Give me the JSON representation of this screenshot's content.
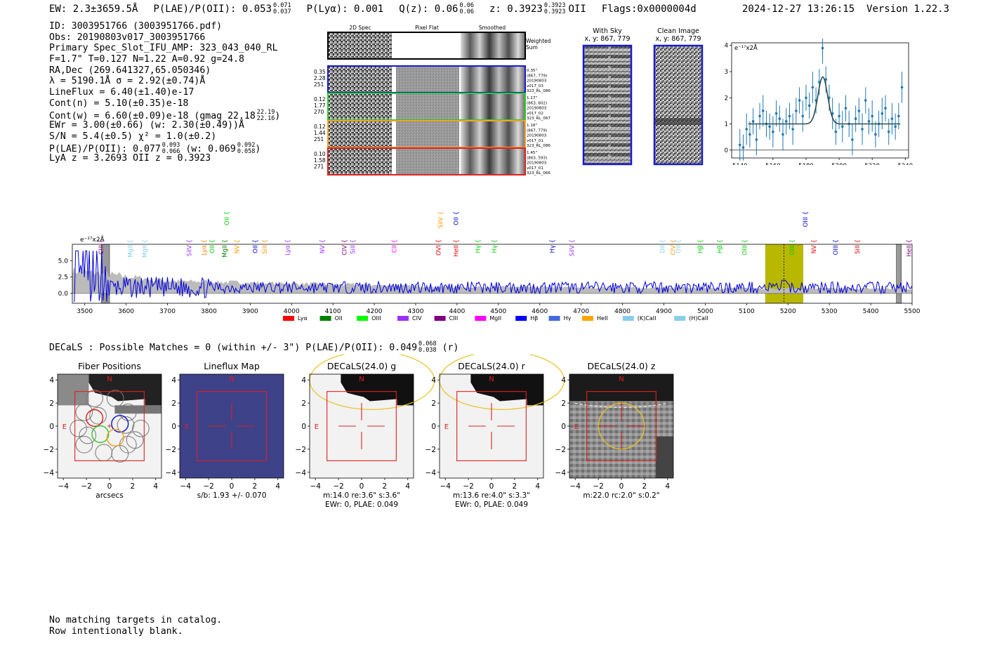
{
  "header": {
    "ew": "EW: 2.3±3659.5Å",
    "plae_label": "P(LAE)/P(OII): 0.053",
    "plae_hi": "0.071",
    "plae_lo": "0.037",
    "plya": "P(Lyα): 0.001",
    "qz_label": "Q(z): 0.06",
    "qz_hi": "0.06",
    "qz_lo": "0.06",
    "z_label": "z: 0.3923",
    "z_hi": "0.3923",
    "z_lo": "0.3923",
    "z_line": "OII",
    "flags": "Flags:0x0000004d",
    "timestamp": "2024-12-27 13:26:15",
    "version": "Version 1.22.3"
  },
  "info": {
    "id": "ID: 3003951766 (3003951766.pdf)",
    "obs": "Obs: 20190803v017_3003951766",
    "primary": "Primary Spec_Slot_IFU_AMP: 323_043_040_RL",
    "fparams": "F=1.7\"  T=0.127  N=1.22  A=0.92  g=24.8",
    "radec": "RA,Dec (269.641327,65.050346)",
    "lambda": "λ = 5190.1Å   σ = 2.92(±0.74)Å",
    "lineflux": "LineFlux = 6.40(±1.40)e-17",
    "contn": "Cont(n) = 5.10(±0.35)e-18",
    "contw": "Cont(w) = 6.60(±0.09)e-18 (gmag 22.18",
    "contw_hi": "22.19",
    "contw_lo": "22.16",
    "ewr": "EWr = 3.00(±0.66) (w: 2.30(±0.49))Å",
    "sn": "S/N = 5.4(±0.5)  χ² = 1.0(±0.2)",
    "plae2": "P(LAE)/P(OII): 0.077",
    "plae2_hi": "0.093",
    "plae2_lo": "0.066",
    "plae2_w": "(w: 0.069",
    "plae2_w_hi": "0.092",
    "plae2_w_lo": "0.058",
    "lyaz": "LyA z = 3.2693   OII z = 0.3923"
  },
  "cutouts": {
    "col1": "2D Spec",
    "col2": "Pixel Flat",
    "col3": "Smoothed",
    "weighted": "Weighted",
    "sum": "Sum",
    "rows": [
      {
        "color": "#1a1acc",
        "left": [
          "0.35",
          "2.28",
          "251"
        ],
        "right": [
          "0.35\"",
          "(867, 779)",
          "20190803",
          "v017_03",
          "323_RL_086"
        ]
      },
      {
        "color": "#2ecc2e",
        "left": [
          "0.12",
          "1.77",
          "270"
        ],
        "right": [
          "1.17\"",
          "(863, 602)",
          "20190803",
          "v017_02",
          "323_RL_067"
        ]
      },
      {
        "color": "#f2a22a",
        "left": [
          "0.12",
          "1.44",
          "251"
        ],
        "right": [
          "1.18\"",
          "(867, 779)",
          "20190803",
          "v017_01",
          "323_RL_086"
        ]
      },
      {
        "color": "#e02020",
        "left": [
          "0.10",
          "1.58",
          "271"
        ],
        "right": [
          "1.45\"",
          "(863, 593)",
          "20190803",
          "v017_01",
          "323_RL_066"
        ]
      }
    ]
  },
  "sky": {
    "with_sky": "With Sky",
    "clean": "Clean Image",
    "coords1": "x, y: 867, 779",
    "coords2": "x, y: 867, 779"
  },
  "zoom_chart": {
    "ylabel": "e⁻¹⁷x2Å",
    "xticks": [
      "5140",
      "5160",
      "5180",
      "5200",
      "5220",
      "5240"
    ],
    "yticks": [
      "0",
      "1",
      "2",
      "3",
      "4"
    ]
  },
  "spectrum": {
    "ylabel": "e⁻¹⁷x2Å",
    "xticks": [
      "3500",
      "3600",
      "3700",
      "3800",
      "3900",
      "4000",
      "4100",
      "4200",
      "4300",
      "4400",
      "4500",
      "4600",
      "4700",
      "4800",
      "4900",
      "5000",
      "5100",
      "5200",
      "5300",
      "5400",
      "5500"
    ],
    "yticks": [
      "0.0",
      "2.5",
      "5.0"
    ],
    "lines": [
      {
        "label": "CIII",
        "x": 3540,
        "color": "#800080",
        "tier": 1
      },
      {
        "label": "MgII",
        "x": 3610,
        "color": "#87ceeb",
        "tier": 1
      },
      {
        "label": "MgII",
        "x": 3645,
        "color": "#87ceeb",
        "tier": 1
      },
      {
        "label": "SiIV",
        "x": 3753,
        "color": "#9b30ff",
        "tier": 1
      },
      {
        "label": "Lyα",
        "x": 3788,
        "color": "#ff7f00",
        "tier": 1
      },
      {
        "label": "OII",
        "x": 3808,
        "color": "#00cc00",
        "tier": 1
      },
      {
        "label": "MgII",
        "x": 3838,
        "color": "#008000",
        "tier": 1
      },
      {
        "label": "OII",
        "x": 3843,
        "color": "#00cc00",
        "tier": 2
      },
      {
        "label": "NV",
        "x": 3868,
        "color": "#ff9900",
        "tier": 1
      },
      {
        "label": "OII",
        "x": 3912,
        "color": "#0000cc",
        "tier": 1
      },
      {
        "label": "SiII",
        "x": 3935,
        "color": "#ff9900",
        "tier": 1
      },
      {
        "label": "Lyα",
        "x": 3990,
        "color": "#9b30ff",
        "tier": 1
      },
      {
        "label": "NV",
        "x": 4074,
        "color": "#9b30ff",
        "tier": 1
      },
      {
        "label": "CIV",
        "x": 4128,
        "color": "#800080",
        "tier": 1
      },
      {
        "label": "SiII",
        "x": 4148,
        "color": "#9b30ff",
        "tier": 1
      },
      {
        "label": "CII",
        "x": 4248,
        "color": "#ff00ff",
        "tier": 1
      },
      {
        "label": "OVI",
        "x": 4355,
        "color": "#e60000",
        "tier": 1
      },
      {
        "label": "SiIV",
        "x": 4360,
        "color": "#ff9900",
        "tier": 2
      },
      {
        "label": "HeII",
        "x": 4398,
        "color": "#e60000",
        "tier": 1
      },
      {
        "label": "OII",
        "x": 4398,
        "color": "#0000cc",
        "tier": 2
      },
      {
        "label": "Hγ",
        "x": 4450,
        "color": "#00cc00",
        "tier": 1
      },
      {
        "label": "Hγ",
        "x": 4490,
        "color": "#00cc00",
        "tier": 1
      },
      {
        "label": "Hγ",
        "x": 4630,
        "color": "#0000cc",
        "tier": 1
      },
      {
        "label": "SiIV",
        "x": 4678,
        "color": "#9b30ff",
        "tier": 1
      },
      {
        "label": "OII",
        "x": 4897,
        "color": "#87ceeb",
        "tier": 1
      },
      {
        "label": "CIV",
        "x": 4922,
        "color": "#ff9900",
        "tier": 1
      },
      {
        "label": "OII",
        "x": 4935,
        "color": "#87ceeb",
        "tier": 1
      },
      {
        "label": "Hβ",
        "x": 4988,
        "color": "#00cc00",
        "tier": 1
      },
      {
        "label": "Hβ",
        "x": 5035,
        "color": "#00cc00",
        "tier": 1
      },
      {
        "label": "OIII",
        "x": 5095,
        "color": "#00cc00",
        "tier": 1
      },
      {
        "label": "OIII",
        "x": 5210,
        "color": "#00cc00",
        "tier": 1
      },
      {
        "label": "NV",
        "x": 5262,
        "color": "#e60000",
        "tier": 1
      },
      {
        "label": "OIII",
        "x": 5242,
        "color": "#0000cc",
        "tier": 2
      },
      {
        "label": "OIII",
        "x": 5315,
        "color": "#0000cc",
        "tier": 1
      },
      {
        "label": "SiII",
        "x": 5368,
        "color": "#e60000",
        "tier": 1
      },
      {
        "label": "HeII",
        "x": 5492,
        "color": "#800080",
        "tier": 1
      }
    ],
    "legend": [
      {
        "label": "Lyα",
        "color": "#ff0000"
      },
      {
        "label": "OII",
        "color": "#008000"
      },
      {
        "label": "OIII",
        "color": "#00ff00"
      },
      {
        "label": "CIV",
        "color": "#9b30ff"
      },
      {
        "label": "CIII",
        "color": "#800080"
      },
      {
        "label": "MgII",
        "color": "#ff00ff"
      },
      {
        "label": "Hβ",
        "color": "#0000ff"
      },
      {
        "label": "Hγ",
        "color": "#4169e1"
      },
      {
        "label": "HeII",
        "color": "#ffa500"
      },
      {
        "label": "(K)CaII",
        "color": "#87ceeb"
      },
      {
        "label": "(H)CaII",
        "color": "#87ceeb"
      }
    ]
  },
  "decals": {
    "title": "DECaLS : Possible Matches = 0 (within +/- 3\")  P(LAE)/P(OII): 0.049",
    "title_hi": "0.068",
    "title_lo": "0.038",
    "title_band": "(r)",
    "ticks": [
      "−4",
      "−2",
      "0",
      "2",
      "4"
    ],
    "n_label": "N",
    "e_label": "E",
    "panels": [
      {
        "title": "Fiber Positions",
        "cap1": "arcsecs",
        "cap2": ""
      },
      {
        "title": "Lineflux Map",
        "cap1": "s/b: 1.93 +/- 0.070",
        "cap2": ""
      },
      {
        "title": "DECaLS(24.0) g",
        "cap1": "m:14.0  re:3.6\"  s:3.6\"",
        "cap2": "EWr: 0, PLAE: 0.049"
      },
      {
        "title": "DECaLS(24.0) r",
        "cap1": "m:13.6  re:4.0\"  s:3.3\"",
        "cap2": "EWr: 0, PLAE: 0.049"
      },
      {
        "title": "DECaLS(24.0) z",
        "cap1": "m:22.0 rc:2.0\"  s:0.2\"",
        "cap2": ""
      }
    ]
  },
  "footer": {
    "line1": "No matching targets in catalog.",
    "line2": "Row intentionally blank."
  },
  "chart_data": [
    {
      "type": "line",
      "title": "",
      "xlabel": "",
      "ylabel": "e⁻¹⁷x2Å",
      "xlim": [
        5135,
        5242
      ],
      "ylim": [
        -0.3,
        4.1
      ],
      "fit": {
        "center": 5190.1,
        "sigma": 2.92,
        "amplitude": 1.8,
        "continuum": 1.0,
        "range": [
          5145,
          5237
        ]
      },
      "x": [
        5140,
        5142,
        5144,
        5146,
        5148,
        5150,
        5152,
        5154,
        5156,
        5158,
        5160,
        5162,
        5164,
        5166,
        5168,
        5170,
        5172,
        5174,
        5176,
        5178,
        5180,
        5182,
        5184,
        5186,
        5188,
        5190,
        5192,
        5194,
        5196,
        5198,
        5200,
        5202,
        5204,
        5206,
        5208,
        5210,
        5212,
        5214,
        5216,
        5218,
        5220,
        5222,
        5224,
        5226,
        5228,
        5230,
        5232,
        5234,
        5236,
        5238
      ],
      "y": [
        0.2,
        0.1,
        0.8,
        0.6,
        1.1,
        0.4,
        1.3,
        1.5,
        1.0,
        0.9,
        0.7,
        1.4,
        1.2,
        0.6,
        1.1,
        1.3,
        0.8,
        1.5,
        1.9,
        1.3,
        2.0,
        1.7,
        2.4,
        1.9,
        2.6,
        3.9,
        2.7,
        2.0,
        1.4,
        0.7,
        1.3,
        0.9,
        1.6,
        1.0,
        0.4,
        1.2,
        1.5,
        0.8,
        1.9,
        1.1,
        1.3,
        0.6,
        1.0,
        1.4,
        1.6,
        0.7,
        1.2,
        0.9,
        1.3,
        2.4
      ],
      "yerr": [
        0.6,
        0.5,
        0.6,
        0.5,
        0.5,
        0.6,
        0.5,
        0.6,
        0.5,
        0.5,
        0.6,
        0.5,
        0.5,
        0.6,
        0.5,
        0.5,
        0.6,
        0.5,
        0.5,
        0.6,
        0.5,
        0.5,
        0.6,
        0.5,
        0.5,
        0.6,
        0.5,
        0.5,
        0.6,
        0.5,
        0.5,
        0.6,
        0.5,
        0.5,
        0.6,
        0.5,
        0.5,
        0.6,
        0.5,
        0.5,
        0.6,
        0.5,
        0.5,
        0.6,
        0.5,
        0.5,
        0.6,
        0.5,
        0.5,
        0.6
      ],
      "series": [
        {
          "name": "data",
          "color": "#1f77b4"
        },
        {
          "name": "fit",
          "color": "#2f4f4f"
        }
      ]
    },
    {
      "type": "line",
      "title": "",
      "xlabel": "",
      "ylabel": "e⁻¹⁷x2Å",
      "xlim": [
        3470,
        5500
      ],
      "ylim": [
        -1.5,
        7.5
      ],
      "series": [
        {
          "name": "flux",
          "color": "#0000dd"
        },
        {
          "name": "error",
          "color": "#bbbbbb"
        }
      ],
      "highlight_band": [
        5145,
        5237
      ],
      "line_center": 5190.1,
      "masked_regions": [
        [
          3540,
          3560
        ],
        [
          5462,
          5474
        ]
      ]
    }
  ]
}
